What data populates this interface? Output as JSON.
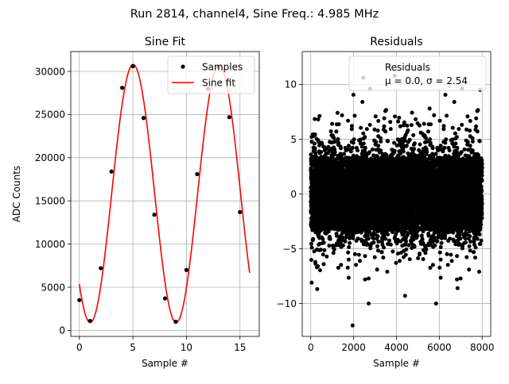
{
  "figure": {
    "suptitle": "Run 2814, channel4, Sine Freq.: 4.985 MHz"
  },
  "chart_data": [
    {
      "type": "line",
      "title": "Sine Fit",
      "xlabel": "Sample #",
      "ylabel": "ADC Counts",
      "xlim": [
        -0.8,
        16.8
      ],
      "ylim": [
        -700,
        32300
      ],
      "x_ticks": [
        0,
        5,
        10,
        15
      ],
      "y_ticks": [
        0,
        5000,
        10000,
        15000,
        20000,
        25000,
        30000
      ],
      "grid": true,
      "legend_placement": "upper-right",
      "legend": [
        "Samples",
        "Sine fit"
      ],
      "samples": {
        "x": [
          0,
          1,
          2,
          3,
          4,
          5,
          6,
          7,
          8,
          9,
          10,
          11,
          12,
          13,
          14,
          15
        ],
        "y": [
          3500,
          1100,
          7200,
          18400,
          28100,
          30600,
          24600,
          13400,
          3700,
          1000,
          7000,
          18100,
          28000,
          30500,
          24700,
          13700
        ]
      },
      "fit": {
        "offset": 15850,
        "amplitude": 14950,
        "period": 8.025,
        "phase": 3.92,
        "x_range": [
          0,
          15.9
        ]
      },
      "colors": {
        "samples": "#000000",
        "fit": "#ff0000"
      }
    },
    {
      "type": "scatter",
      "title": "Residuals",
      "xlabel": "Sample #",
      "ylabel": "",
      "xlim": [
        -400,
        8400
      ],
      "ylim": [
        -13,
        13
      ],
      "x_ticks": [
        0,
        2000,
        4000,
        6000,
        8000
      ],
      "y_ticks": [
        -10,
        -5,
        0,
        5,
        10
      ],
      "grid": true,
      "legend_placement": "upper-right",
      "legend": [
        "Residuals",
        "μ = 0.0, σ = 2.54"
      ],
      "n_points": 8000,
      "mean": 0.0,
      "sigma": 2.54,
      "core_half_width": 3.3,
      "notable_points": [
        {
          "x": 1950,
          "y": -12.0
        },
        {
          "x": 2450,
          "y": 10.6
        },
        {
          "x": 4400,
          "y": -9.3
        },
        {
          "x": 5850,
          "y": -10.0
        },
        {
          "x": 6850,
          "y": -8.6
        },
        {
          "x": 40,
          "y": -8.1
        },
        {
          "x": 2700,
          "y": -10.0
        },
        {
          "x": 7900,
          "y": 9.5
        },
        {
          "x": 5550,
          "y": 7.8
        },
        {
          "x": 1250,
          "y": 7.4
        }
      ],
      "colors": {
        "points": "#000000"
      }
    }
  ]
}
